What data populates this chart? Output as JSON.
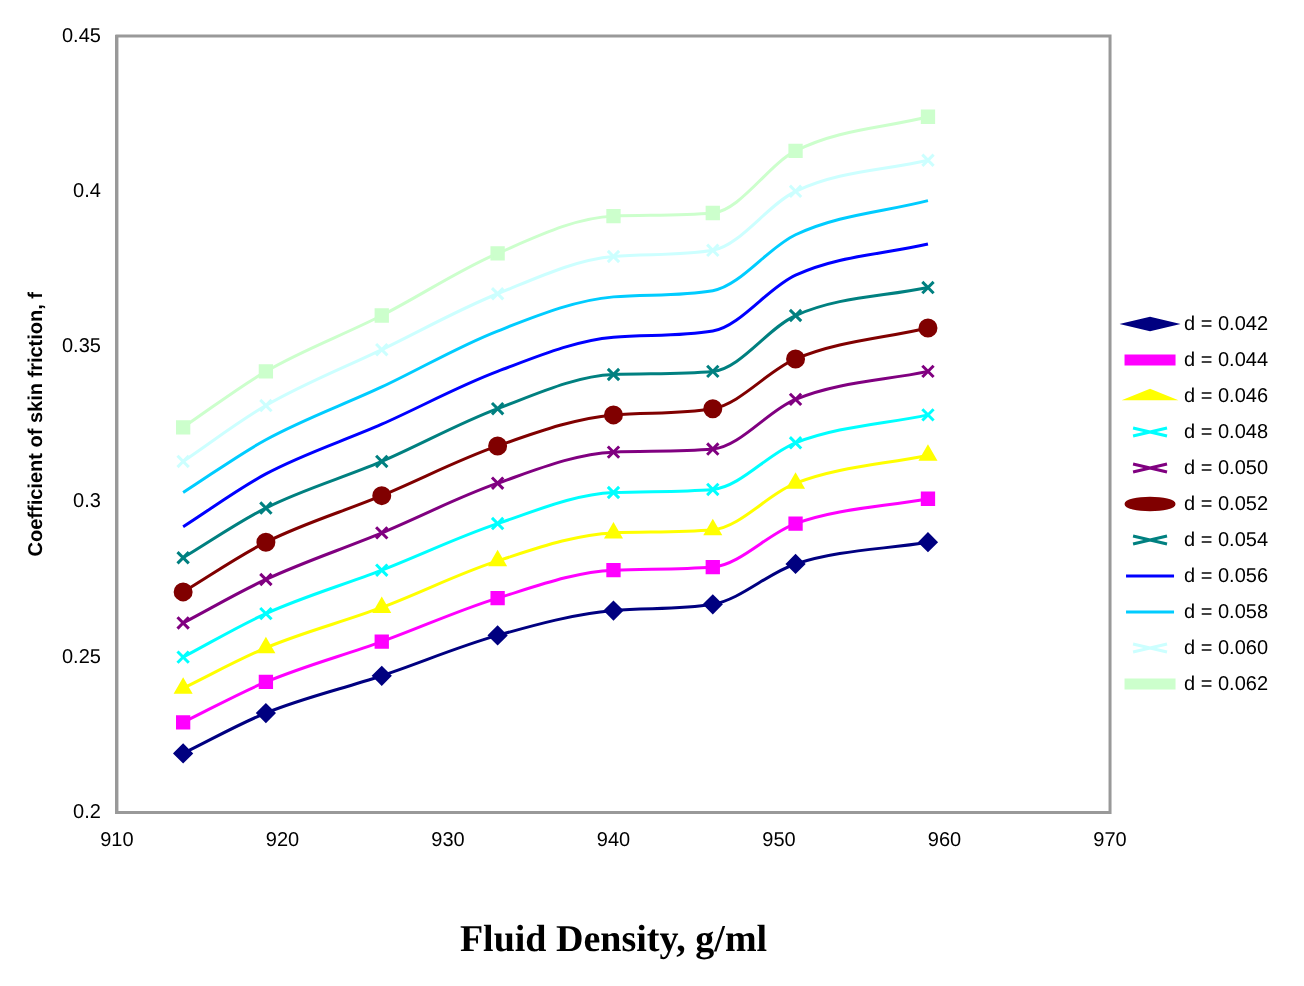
{
  "chart_data": {
    "type": "line",
    "xlabel": "Fluid Density, g/ml",
    "ylabel": "Coefficient of skin friction, f",
    "x": [
      914,
      919,
      926,
      933,
      940,
      946,
      951,
      959
    ],
    "xlim": [
      910,
      970
    ],
    "xticks": [
      910,
      920,
      930,
      940,
      950,
      960,
      970
    ],
    "ylim": [
      0.2,
      0.45
    ],
    "yticks": [
      0.2,
      0.25,
      0.3,
      0.35,
      0.4,
      0.45
    ],
    "grid": false,
    "legend": "right",
    "series": [
      {
        "name": "d = 0.042",
        "color": "#000080",
        "marker": "diamond",
        "values": [
          0.219,
          0.232,
          0.244,
          0.257,
          0.265,
          0.267,
          0.28,
          0.287
        ]
      },
      {
        "name": "d = 0.044",
        "color": "#ff00ff",
        "marker": "square",
        "values": [
          0.229,
          0.242,
          0.255,
          0.269,
          0.278,
          0.279,
          0.293,
          0.301
        ]
      },
      {
        "name": "d = 0.046",
        "color": "#ffff00",
        "marker": "triangle",
        "values": [
          0.24,
          0.253,
          0.266,
          0.281,
          0.29,
          0.291,
          0.306,
          0.315
        ]
      },
      {
        "name": "d = 0.048",
        "color": "#00ffff",
        "marker": "cross",
        "values": [
          0.25,
          0.264,
          0.278,
          0.293,
          0.303,
          0.304,
          0.319,
          0.328
        ]
      },
      {
        "name": "d = 0.050",
        "color": "#800080",
        "marker": "cross",
        "values": [
          0.261,
          0.275,
          0.29,
          0.306,
          0.316,
          0.317,
          0.333,
          0.342
        ]
      },
      {
        "name": "d = 0.052",
        "color": "#800000",
        "marker": "circle",
        "values": [
          0.271,
          0.287,
          0.302,
          0.318,
          0.328,
          0.33,
          0.346,
          0.356
        ]
      },
      {
        "name": "d = 0.054",
        "color": "#008080",
        "marker": "cross",
        "values": [
          0.282,
          0.298,
          0.313,
          0.33,
          0.341,
          0.342,
          0.36,
          0.369
        ]
      },
      {
        "name": "d = 0.056",
        "color": "#0000ff",
        "marker": "none",
        "values": [
          0.292,
          0.309,
          0.325,
          0.342,
          0.353,
          0.355,
          0.373,
          0.383
        ]
      },
      {
        "name": "d = 0.058",
        "color": "#00ccff",
        "marker": "none",
        "values": [
          0.303,
          0.32,
          0.337,
          0.355,
          0.366,
          0.368,
          0.386,
          0.397
        ]
      },
      {
        "name": "d = 0.060",
        "color": "#ccffff",
        "marker": "cross",
        "values": [
          0.313,
          0.331,
          0.349,
          0.367,
          0.379,
          0.381,
          0.4,
          0.41
        ]
      },
      {
        "name": "d = 0.062",
        "color": "#ccffcc",
        "marker": "square",
        "values": [
          0.324,
          0.342,
          0.36,
          0.38,
          0.392,
          0.393,
          0.413,
          0.424
        ]
      }
    ]
  }
}
